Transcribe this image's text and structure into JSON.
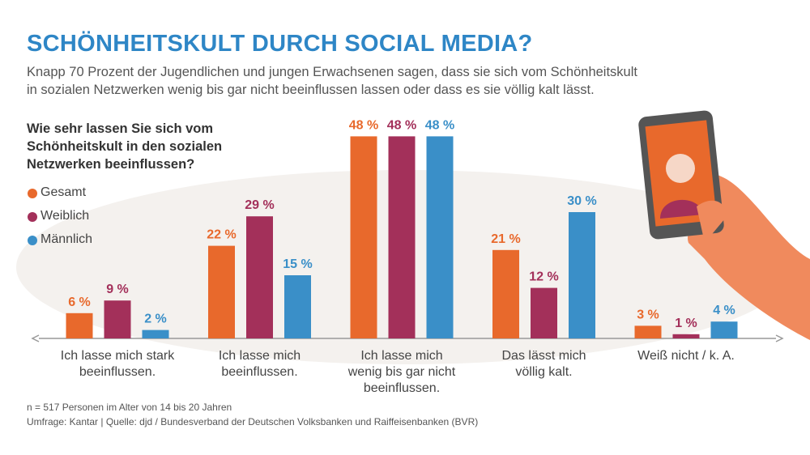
{
  "chart_data": {
    "type": "bar",
    "title": "SCHÖNHEITSKULT DURCH SOCIAL MEDIA?",
    "subtitle": "Knapp 70 Prozent der Jugendlichen und jungen Erwachsenen sagen, dass sie sich vom Schönheitskult\nin sozialen Netzwerken wenig bis gar nicht beeinflussen lassen oder dass es sie völlig kalt lässt.",
    "question": "Wie sehr lassen Sie sich vom\nSchönheitskult in den sozialen\nNetzwerken beeinflussen?",
    "categories": [
      "Ich lasse mich stark\nbeeinflussen.",
      "Ich lasse mich\nbeeinflussen.",
      "Ich lasse mich\nwenig bis gar nicht\nbeeinflussen.",
      "Das lässt mich\nvöllig kalt.",
      "Weiß nicht / k. A."
    ],
    "series": [
      {
        "name": "Gesamt",
        "color": "#e8692c",
        "values": [
          6,
          22,
          48,
          21,
          3
        ],
        "value_labels": [
          "6 %",
          "22 %",
          "48 %",
          "21 %",
          "3 %"
        ]
      },
      {
        "name": "Weiblich",
        "color": "#a3305a",
        "values": [
          9,
          29,
          48,
          12,
          1
        ],
        "value_labels": [
          "9 %",
          "29 %",
          "48 %",
          "12 %",
          "1 %"
        ]
      },
      {
        "name": "Männlich",
        "color": "#3a8fc8",
        "values": [
          2,
          15,
          48,
          30,
          4
        ],
        "value_labels": [
          "2 %",
          "15 %",
          "48 %",
          "30 %",
          "4 %"
        ]
      }
    ],
    "ylim": [
      0,
      50
    ],
    "notes": [
      "n = 517 Personen im Alter von 14 bis 20 Jahren",
      "Umfrage: Kantar | Quelle: djd / Bundesverband der Deutschen Volksbanken und Raiffeisenbanken (BVR)"
    ]
  }
}
